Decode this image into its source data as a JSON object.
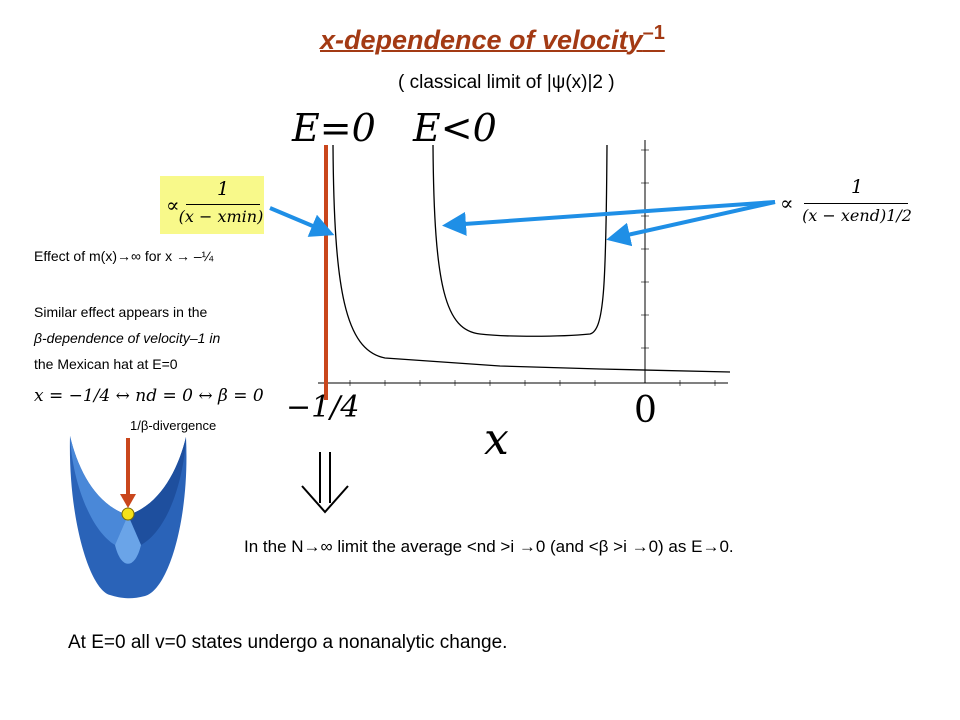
{
  "title": {
    "main": "x-dependence of velocity",
    "exp": "–1"
  },
  "subtitle": "( classical limit of |ψ(x)|2 )",
  "curve_labels": {
    "e_zero": "E=0",
    "e_negative": "E<0"
  },
  "axis": {
    "x_label": "x",
    "x_tick_left": "−1/4",
    "x_tick_right": "0"
  },
  "proportional_left": {
    "prefix": "∝",
    "numerator": "1",
    "denominator": "(x − xmin)"
  },
  "proportional_right": {
    "prefix": "∝",
    "numerator": "1",
    "denominator": "(x − xend)1/2"
  },
  "notes": {
    "effect": "Effect of m(x)→∞ for x → –¼",
    "similar_1": "Similar effect appears in the",
    "similar_2": "β-dependence of velocity–1 in",
    "similar_3": "the Mexican hat at E=0",
    "equivalence": "x = −1/4  ↔  nd = 0  ↔  β = 0",
    "divergence": "1/β-divergence"
  },
  "limit_statement": "In the N→∞ limit the average <nd >i →0 (and <β >i →0) as E→0.",
  "conclusion": "At E=0 all v=0 states undergo a nonanalytic change.",
  "colors": {
    "title": "#a33a14",
    "arrow": "#1f8fe6",
    "vertical_line": "#c9461c",
    "highlight": "#f8f98a"
  }
}
